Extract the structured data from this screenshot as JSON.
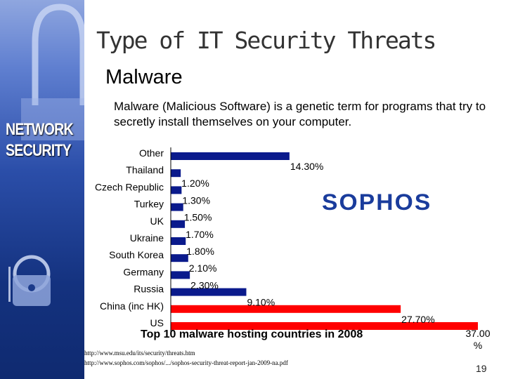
{
  "sidebar": {
    "label": "NETWORK\nSECURITY"
  },
  "title": "Type of IT Security Threats",
  "subtitle": "Malware",
  "description": "Malware (Malicious Software) is a genetic term for programs that try to secretly install themselves on your computer.",
  "logo_text": "SOPHOS",
  "chart_data": {
    "type": "bar",
    "orientation": "horizontal",
    "title": "Top 10 malware hosting countries in 2008",
    "categories": [
      "Other",
      "Thailand",
      "Czech Republic",
      "Turkey",
      "UK",
      "Ukraine",
      "South Korea",
      "Germany",
      "Russia",
      "China (inc HK)",
      "US"
    ],
    "values": [
      14.3,
      1.2,
      1.3,
      1.5,
      1.7,
      1.8,
      2.1,
      2.3,
      9.1,
      27.7,
      37.0
    ],
    "value_labels": [
      "14.30%",
      "1.20%",
      "1.30%",
      "1.50%",
      "1.70%",
      "1.80%",
      "2.10%",
      "2.30%",
      "9.10%",
      "27.70%",
      "37.00 %"
    ],
    "colors": [
      "#0a1a8c",
      "#0a1a8c",
      "#0a1a8c",
      "#0a1a8c",
      "#0a1a8c",
      "#0a1a8c",
      "#0a1a8c",
      "#0a1a8c",
      "#0a1a8c",
      "#ff0000",
      "#ff0000"
    ],
    "xlim": [
      0,
      37
    ],
    "grid": false,
    "legend": "none"
  },
  "sources": [
    "http://www.msu.edu/its/security/threats.htm",
    "http://www.sophos.com/sophos/.../sophos-security-threat-report-jan-2009-na.pdf"
  ],
  "slide_number": "19"
}
